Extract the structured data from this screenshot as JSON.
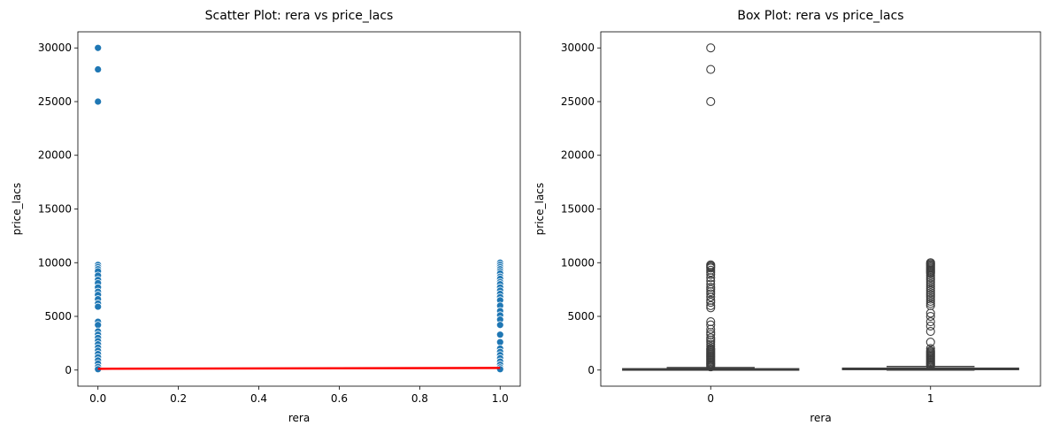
{
  "chart_data": [
    {
      "type": "scatter",
      "title": "Scatter Plot: rera vs price_lacs",
      "xlabel": "rera",
      "ylabel": "price_lacs",
      "xlim": [
        -0.05,
        1.05
      ],
      "ylim": [
        -1500,
        31500
      ],
      "xticks": [
        0.0,
        0.2,
        0.4,
        0.6,
        0.8,
        1.0
      ],
      "xtick_labels": [
        "0.0",
        "0.2",
        "0.4",
        "0.6",
        "0.8",
        "1.0"
      ],
      "yticks": [
        0,
        5000,
        10000,
        15000,
        20000,
        25000,
        30000
      ],
      "ytick_labels": [
        "0",
        "5000",
        "10000",
        "15000",
        "20000",
        "25000",
        "30000"
      ],
      "point_color": "#1f77b4",
      "points": [
        {
          "x": 0,
          "y": 30000
        },
        {
          "x": 0,
          "y": 28000
        },
        {
          "x": 0,
          "y": 25000
        },
        {
          "x": 0,
          "y": 9800
        },
        {
          "x": 0,
          "y": 9600
        },
        {
          "x": 0,
          "y": 9400
        },
        {
          "x": 0,
          "y": 9200
        },
        {
          "x": 0,
          "y": 8800
        },
        {
          "x": 0,
          "y": 8400
        },
        {
          "x": 0,
          "y": 8100
        },
        {
          "x": 0,
          "y": 7700
        },
        {
          "x": 0,
          "y": 7300
        },
        {
          "x": 0,
          "y": 7000
        },
        {
          "x": 0,
          "y": 6600
        },
        {
          "x": 0,
          "y": 6200
        },
        {
          "x": 0,
          "y": 5900
        },
        {
          "x": 0,
          "y": 4500
        },
        {
          "x": 0,
          "y": 4200
        },
        {
          "x": 0,
          "y": 3600
        },
        {
          "x": 0,
          "y": 3300
        },
        {
          "x": 0,
          "y": 3000
        },
        {
          "x": 0,
          "y": 2700
        },
        {
          "x": 0,
          "y": 2400
        },
        {
          "x": 0,
          "y": 2100
        },
        {
          "x": 0,
          "y": 1800
        },
        {
          "x": 0,
          "y": 1500
        },
        {
          "x": 0,
          "y": 1200
        },
        {
          "x": 0,
          "y": 900
        },
        {
          "x": 0,
          "y": 600
        },
        {
          "x": 0,
          "y": 300
        },
        {
          "x": 0,
          "y": 80
        },
        {
          "x": 1,
          "y": 10000
        },
        {
          "x": 1,
          "y": 9800
        },
        {
          "x": 1,
          "y": 9600
        },
        {
          "x": 1,
          "y": 9400
        },
        {
          "x": 1,
          "y": 9200
        },
        {
          "x": 1,
          "y": 9000
        },
        {
          "x": 1,
          "y": 8700
        },
        {
          "x": 1,
          "y": 8500
        },
        {
          "x": 1,
          "y": 8200
        },
        {
          "x": 1,
          "y": 8000
        },
        {
          "x": 1,
          "y": 7700
        },
        {
          "x": 1,
          "y": 7400
        },
        {
          "x": 1,
          "y": 7100
        },
        {
          "x": 1,
          "y": 6800
        },
        {
          "x": 1,
          "y": 6500
        },
        {
          "x": 1,
          "y": 6000
        },
        {
          "x": 1,
          "y": 5500
        },
        {
          "x": 1,
          "y": 5100
        },
        {
          "x": 1,
          "y": 4700
        },
        {
          "x": 1,
          "y": 4200
        },
        {
          "x": 1,
          "y": 3300
        },
        {
          "x": 1,
          "y": 2600
        },
        {
          "x": 1,
          "y": 2000
        },
        {
          "x": 1,
          "y": 1700
        },
        {
          "x": 1,
          "y": 1400
        },
        {
          "x": 1,
          "y": 1100
        },
        {
          "x": 1,
          "y": 800
        },
        {
          "x": 1,
          "y": 500
        },
        {
          "x": 1,
          "y": 250
        },
        {
          "x": 1,
          "y": 80
        }
      ],
      "regression_line": {
        "color": "#ff0000",
        "x": [
          0,
          1
        ],
        "y": [
          120,
          200
        ]
      }
    },
    {
      "type": "box",
      "title": "Box Plot: rera vs price_lacs",
      "xlabel": "rera",
      "ylabel": "price_lacs",
      "categories": [
        "0",
        "1"
      ],
      "ylim": [
        -1500,
        31500
      ],
      "yticks": [
        0,
        5000,
        10000,
        15000,
        20000,
        25000,
        30000
      ],
      "ytick_labels": [
        "0",
        "5000",
        "10000",
        "15000",
        "20000",
        "25000",
        "30000"
      ],
      "box_color": "#3d3d3d",
      "boxes": [
        {
          "category": "0",
          "whisker_low": 5,
          "q1": 40,
          "median": 70,
          "q3": 120,
          "whisker_high": 230,
          "outliers": [
            30000,
            28000,
            25000,
            9800,
            9700,
            9600,
            9500,
            9300,
            9100,
            8900,
            8600,
            8300,
            8000,
            7700,
            7500,
            7300,
            7100,
            6800,
            6500,
            6300,
            6000,
            5800,
            4500,
            4200,
            3800,
            3500,
            3300,
            3000,
            2800,
            2600,
            2400,
            2200,
            2000,
            1900,
            1800,
            1700,
            1600,
            1500,
            1400,
            1300,
            1200,
            1100,
            1000,
            900,
            800,
            700,
            600,
            500,
            400,
            300
          ]
        },
        {
          "category": "1",
          "whisker_low": 5,
          "q1": 50,
          "median": 90,
          "q3": 170,
          "whisker_high": 330,
          "outliers": [
            10000,
            9900,
            9800,
            9700,
            9600,
            9500,
            9400,
            9300,
            9200,
            9100,
            9000,
            8800,
            8600,
            8400,
            8200,
            8000,
            7800,
            7600,
            7400,
            7200,
            7000,
            6800,
            6600,
            6400,
            6200,
            6000,
            5300,
            5000,
            4500,
            4100,
            3600,
            2600,
            2000,
            1800,
            1700,
            1600,
            1500,
            1400,
            1300,
            1200,
            1100,
            1000,
            900,
            800,
            700,
            600,
            500,
            400
          ]
        }
      ]
    }
  ]
}
